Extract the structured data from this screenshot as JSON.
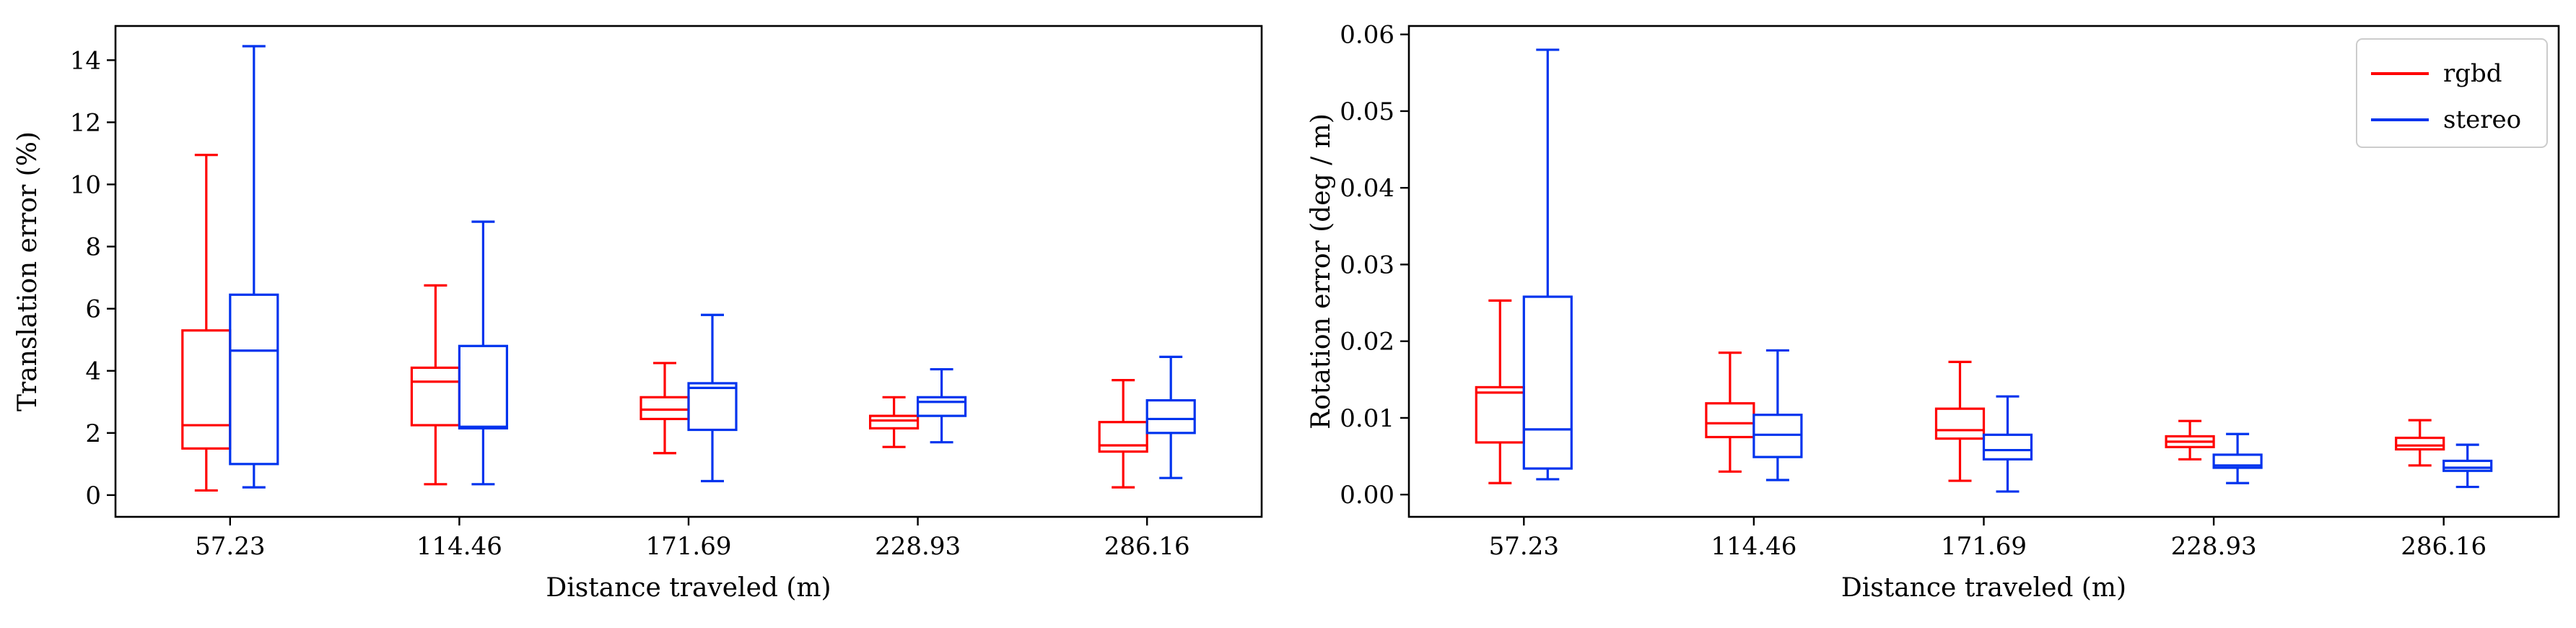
{
  "chart_data": [
    {
      "type": "box",
      "xlabel": "Distance traveled (m)",
      "ylabel": "Translation error (%)",
      "categories": [
        "57.23",
        "114.46",
        "171.69",
        "228.93",
        "286.16"
      ],
      "ylim": [
        -0.7,
        15.1
      ],
      "yticks": [
        0,
        2,
        4,
        6,
        8,
        10,
        12,
        14
      ],
      "grid": false,
      "legend": null,
      "series": [
        {
          "name": "rgbd",
          "color": "#ff0000",
          "boxes": [
            {
              "min": 0.15,
              "q1": 1.5,
              "median": 2.25,
              "q3": 5.3,
              "max": 10.95
            },
            {
              "min": 0.35,
              "q1": 2.25,
              "median": 3.65,
              "q3": 4.1,
              "max": 6.75
            },
            {
              "min": 1.35,
              "q1": 2.45,
              "median": 2.75,
              "q3": 3.15,
              "max": 4.25
            },
            {
              "min": 1.55,
              "q1": 2.15,
              "median": 2.4,
              "q3": 2.55,
              "max": 3.15
            },
            {
              "min": 0.25,
              "q1": 1.4,
              "median": 1.6,
              "q3": 2.35,
              "max": 3.7
            }
          ]
        },
        {
          "name": "stereo",
          "color": "#0033ee",
          "boxes": [
            {
              "min": 0.25,
              "q1": 1.0,
              "median": 4.65,
              "q3": 6.45,
              "max": 14.45
            },
            {
              "min": 0.35,
              "q1": 2.15,
              "median": 2.2,
              "q3": 4.8,
              "max": 8.8
            },
            {
              "min": 0.45,
              "q1": 2.1,
              "median": 3.45,
              "q3": 3.6,
              "max": 5.8
            },
            {
              "min": 1.7,
              "q1": 2.55,
              "median": 3.0,
              "q3": 3.15,
              "max": 4.05
            },
            {
              "min": 0.55,
              "q1": 2.0,
              "median": 2.45,
              "q3": 3.05,
              "max": 4.45
            }
          ]
        }
      ]
    },
    {
      "type": "box",
      "xlabel": "Distance traveled (m)",
      "ylabel": "Rotation error (deg / m)",
      "categories": [
        "57.23",
        "114.46",
        "171.69",
        "228.93",
        "286.16"
      ],
      "ylim": [
        -0.0029,
        0.0611
      ],
      "yticks": [
        0.0,
        0.01,
        0.02,
        0.03,
        0.04,
        0.05,
        0.06
      ],
      "yticklabels": [
        "0.00",
        "0.01",
        "0.02",
        "0.03",
        "0.04",
        "0.05",
        "0.06"
      ],
      "grid": false,
      "legend": "top-right",
      "series": [
        {
          "name": "rgbd",
          "color": "#ff0000",
          "boxes": [
            {
              "min": 0.0015,
              "q1": 0.0068,
              "median": 0.0133,
              "q3": 0.014,
              "max": 0.0253
            },
            {
              "min": 0.003,
              "q1": 0.0075,
              "median": 0.0093,
              "q3": 0.0119,
              "max": 0.0185
            },
            {
              "min": 0.0018,
              "q1": 0.0073,
              "median": 0.0084,
              "q3": 0.0112,
              "max": 0.0173
            },
            {
              "min": 0.0046,
              "q1": 0.0062,
              "median": 0.0069,
              "q3": 0.0076,
              "max": 0.0096
            },
            {
              "min": 0.0038,
              "q1": 0.0059,
              "median": 0.0064,
              "q3": 0.0074,
              "max": 0.0097
            }
          ]
        },
        {
          "name": "stereo",
          "color": "#0033ee",
          "boxes": [
            {
              "min": 0.002,
              "q1": 0.0034,
              "median": 0.0085,
              "q3": 0.0258,
              "max": 0.058
            },
            {
              "min": 0.0019,
              "q1": 0.0049,
              "median": 0.0078,
              "q3": 0.0104,
              "max": 0.0188
            },
            {
              "min": 0.0004,
              "q1": 0.0046,
              "median": 0.0058,
              "q3": 0.0078,
              "max": 0.0128
            },
            {
              "min": 0.0015,
              "q1": 0.0035,
              "median": 0.0038,
              "q3": 0.0052,
              "max": 0.0079
            },
            {
              "min": 0.001,
              "q1": 0.0031,
              "median": 0.0035,
              "q3": 0.0044,
              "max": 0.0065
            }
          ]
        }
      ]
    }
  ]
}
